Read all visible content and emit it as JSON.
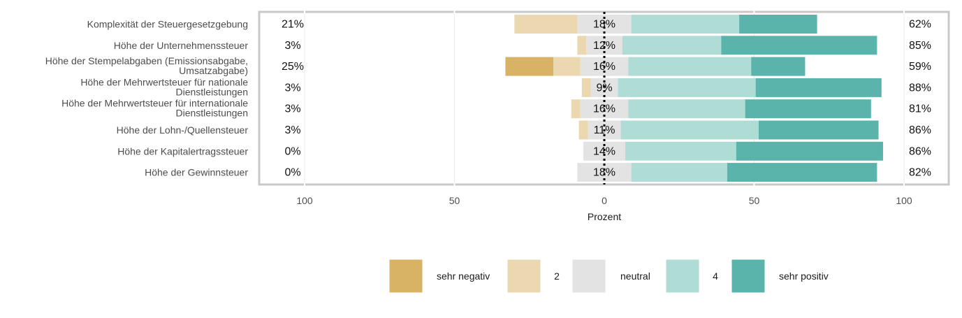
{
  "chart_data": {
    "type": "bar",
    "subtype": "diverging-stacked-likert",
    "title": "",
    "xlabel": "Prozent",
    "ylabel": "",
    "xlim": [
      -115,
      115
    ],
    "x_ticks": [
      {
        "value": -100,
        "label": "100"
      },
      {
        "value": -50,
        "label": "50"
      },
      {
        "value": 0,
        "label": "0"
      },
      {
        "value": 50,
        "label": "50"
      },
      {
        "value": 100,
        "label": "100"
      }
    ],
    "grid": true,
    "legend_position": "bottom",
    "categories": [
      "Komplexität der Steuergesetzgebung",
      "Höhe der Unternehmenssteuer",
      "Höhe der Stempelabgaben (Emissionsabgabe, Umsatzabgabe)",
      "Höhe der Mehrwertsteuer für nationale Dienstleistungen",
      "Höhe der Mehrwertsteuer für internationale Dienstleistungen",
      "Höhe der Lohn-/Quellensteuer",
      "Höhe der Kapitalertragssteuer",
      "Höhe der Gewinnsteuer"
    ],
    "category_lines": [
      [
        "Komplexität der Steuergesetzgebung"
      ],
      [
        "Höhe der Unternehmenssteuer"
      ],
      [
        "Höhe der Stempelabgaben (Emissionsabgabe,",
        "Umsatzabgabe)"
      ],
      [
        "Höhe der Mehrwertsteuer für nationale",
        "Dienstleistungen"
      ],
      [
        "Höhe der Mehrwertsteuer für internationale",
        "Dienstleistungen"
      ],
      [
        "Höhe der Lohn-/Quellensteuer"
      ],
      [
        "Höhe der Kapitalertragssteuer"
      ],
      [
        "Höhe der Gewinnsteuer"
      ]
    ],
    "series": [
      {
        "name": "sehr negativ",
        "color": "#d8b365",
        "values": [
          0,
          0,
          16,
          0,
          0,
          0,
          0,
          0
        ]
      },
      {
        "name": "2",
        "color": "#ebd8b0",
        "values": [
          21,
          3,
          9,
          3,
          3,
          3,
          0,
          0
        ]
      },
      {
        "name": "neutral",
        "color": "#e3e3e3",
        "values": [
          18,
          12,
          16,
          9,
          16,
          11,
          14,
          18
        ]
      },
      {
        "name": "4",
        "color": "#b0dcd6",
        "values": [
          36,
          33,
          41,
          46,
          39,
          46,
          37,
          32
        ]
      },
      {
        "name": "sehr positiv",
        "color": "#5ab4ac",
        "values": [
          26,
          52,
          18,
          42,
          42,
          40,
          49,
          50
        ]
      }
    ],
    "left_labels": [
      "21%",
      "3%",
      "25%",
      "3%",
      "3%",
      "3%",
      "0%",
      "0%"
    ],
    "center_labels": [
      "18%",
      "12%",
      "16%",
      "9%",
      "16%",
      "11%",
      "14%",
      "18%"
    ],
    "right_labels": [
      "62%",
      "85%",
      "59%",
      "88%",
      "81%",
      "86%",
      "86%",
      "82%"
    ],
    "legend": [
      "sehr negativ",
      "2",
      "neutral",
      "4",
      "sehr positiv"
    ]
  }
}
